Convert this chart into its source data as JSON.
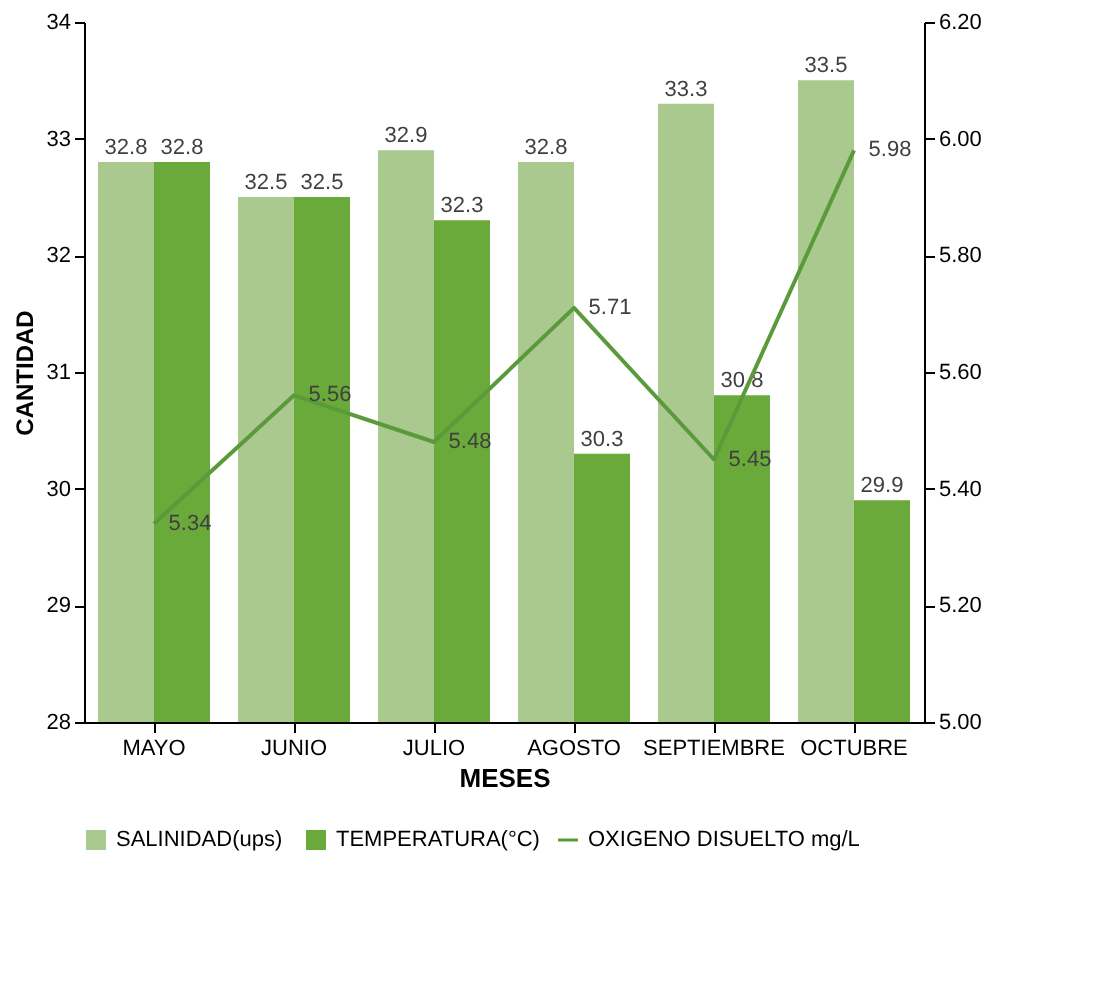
{
  "chart_data": {
    "type": "bar",
    "xlabel": "MESES",
    "ylabel": "CANTIDAD",
    "categories": [
      "MAYO",
      "JUNIO",
      "JULIO",
      "AGOSTO",
      "SEPTIEMBRE",
      "OCTUBRE"
    ],
    "series": [
      {
        "name": "SALINIDAD(ups)",
        "color": "#a9c98f",
        "values": [
          32.8,
          32.5,
          32.9,
          32.8,
          33.3,
          33.5
        ]
      },
      {
        "name": "TEMPERATURA(°C)",
        "color": "#6aaa3a",
        "values": [
          32.8,
          32.5,
          32.3,
          30.3,
          30.8,
          29.9
        ]
      },
      {
        "name": "OXIGENO DISUELTO mg/L",
        "type": "line",
        "axis": "y2",
        "color": "#5a9a3a",
        "values": [
          5.34,
          5.56,
          5.48,
          5.71,
          5.45,
          5.98
        ]
      }
    ],
    "ylim": [
      28,
      34
    ],
    "yticks": [
      28,
      29,
      30,
      31,
      32,
      33,
      34
    ],
    "y2lim": [
      5.0,
      6.2
    ],
    "y2ticks": [
      {
        "value": 5.0,
        "label": "5.00"
      },
      {
        "value": 5.2,
        "label": "5.20"
      },
      {
        "value": 5.4,
        "label": "5.40"
      },
      {
        "value": 5.6,
        "label": "5.60"
      },
      {
        "value": 5.8,
        "label": "5.80"
      },
      {
        "value": 6.0,
        "label": "6.00"
      },
      {
        "value": 6.2,
        "label": "6.20"
      }
    ],
    "data_labels": true,
    "legend": "bottom",
    "grid": false,
    "marker": "none",
    "line_style": "solid"
  }
}
